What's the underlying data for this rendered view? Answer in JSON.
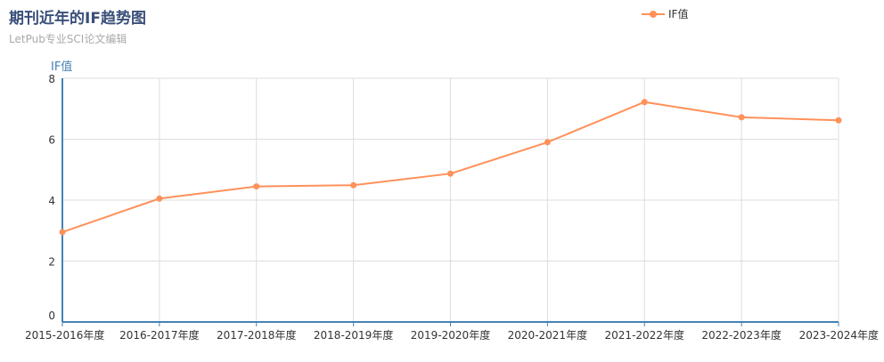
{
  "chart_data": {
    "type": "line",
    "title": "期刊近年的IF趋势图",
    "subtitle": "LetPub专业SCI论文编辑",
    "ylabel": "IF值",
    "ylim": [
      0,
      8
    ],
    "yticks": [
      0,
      2,
      4,
      6,
      8
    ],
    "grid": true,
    "legend": "top-right",
    "categories": [
      "2015-2016年度",
      "2016-2017年度",
      "2017-2018年度",
      "2018-2019年度",
      "2019-2020年度",
      "2020-2021年度",
      "2021-2022年度",
      "2022-2023年度",
      "2023-2024年度"
    ],
    "series": [
      {
        "name": "IF值",
        "values": [
          2.95,
          4.05,
          4.45,
          4.49,
          4.87,
          5.9,
          7.22,
          6.72,
          6.62
        ],
        "color": "#ff915a"
      }
    ],
    "axis_color": "#4682b4",
    "grid_color": "#dddddd"
  }
}
